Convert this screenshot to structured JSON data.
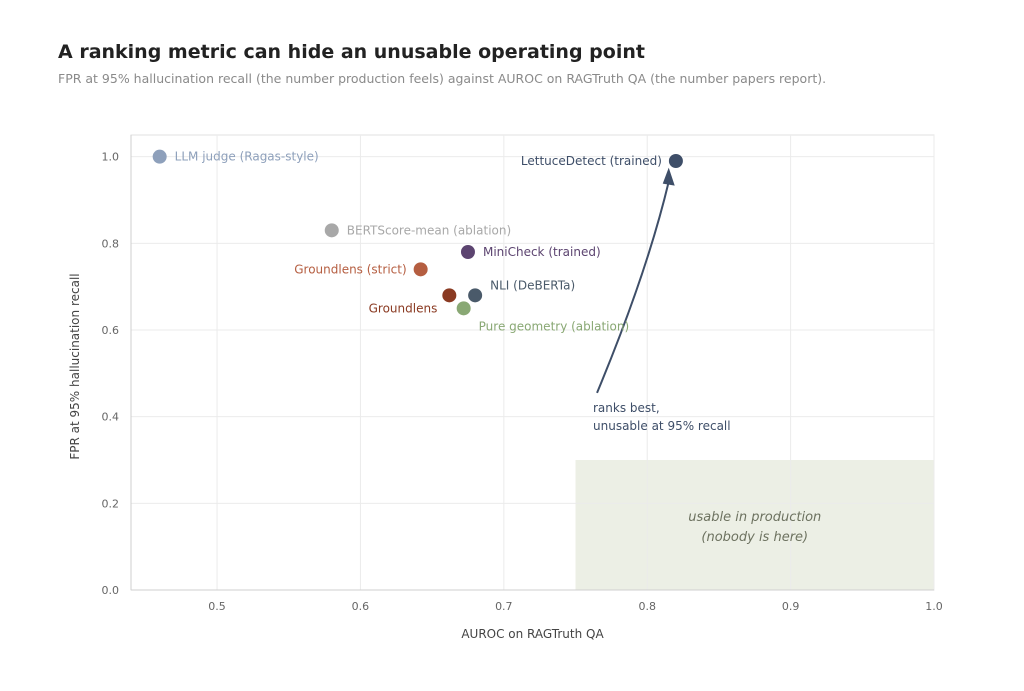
{
  "header": {
    "title": "A ranking metric can hide an unusable operating point",
    "subtitle": "FPR at 95% hallucination recall (the number production feels) against AUROC on RAGTruth QA (the number papers report)."
  },
  "chart_data": {
    "type": "scatter",
    "xlabel": "AUROC on RAGTruth QA",
    "ylabel": "FPR at 95% hallucination recall",
    "xlim": [
      0.44,
      1.0
    ],
    "ylim": [
      0.0,
      1.05
    ],
    "xticks": [
      "0.5",
      "0.6",
      "0.7",
      "0.8",
      "0.9",
      "1.0"
    ],
    "yticks": [
      "0.0",
      "0.2",
      "0.4",
      "0.6",
      "0.8",
      "1.0"
    ],
    "grid": true,
    "points": [
      {
        "label": "LLM judge (Ragas-style)",
        "x": 0.46,
        "y": 1.0,
        "color": "#8ea0bb",
        "label_side": "right"
      },
      {
        "label": "LettuceDetect (trained)",
        "x": 0.82,
        "y": 0.99,
        "color": "#3e4e68",
        "label_side": "left"
      },
      {
        "label": "BERTScore-mean (ablation)",
        "x": 0.58,
        "y": 0.83,
        "color": "#a8a8a8",
        "label_side": "right"
      },
      {
        "label": "MiniCheck (trained)",
        "x": 0.675,
        "y": 0.78,
        "color": "#5c4470",
        "label_side": "right"
      },
      {
        "label": "Groundlens (strict)",
        "x": 0.642,
        "y": 0.74,
        "color": "#b55e41",
        "label_side": "left"
      },
      {
        "label": "NLI (DeBERTa)",
        "x": 0.68,
        "y": 0.68,
        "color": "#4a5a6a",
        "label_side": "right-up"
      },
      {
        "label": "Groundlens",
        "x": 0.662,
        "y": 0.68,
        "color": "#8a3a22",
        "label_side": "left-down"
      },
      {
        "label": "Pure geometry (ablation)",
        "x": 0.672,
        "y": 0.65,
        "color": "#89a874",
        "label_side": "right-down"
      }
    ],
    "region": {
      "x": [
        0.75,
        1.0
      ],
      "y": [
        0.0,
        0.3
      ],
      "color": "#ecefe5",
      "label_lines": [
        "usable in production",
        "(nobody is here)"
      ]
    },
    "annotation": {
      "lines": [
        "ranks best,",
        "unusable at 95% recall"
      ],
      "color": "#3e4e68",
      "arrow_from": {
        "x": 0.765,
        "y": 0.455
      },
      "arrow_to": {
        "x": 0.815,
        "y": 0.97
      }
    }
  }
}
